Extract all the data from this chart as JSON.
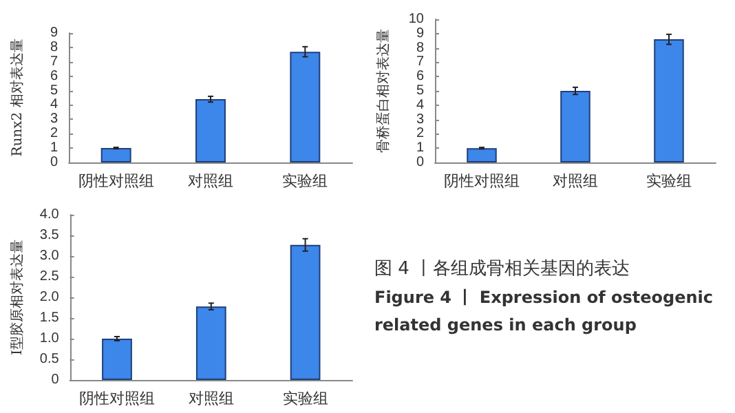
{
  "chart_data": [
    {
      "type": "bar",
      "ylabel": "Runx2 相对表达量",
      "categories": [
        "阴性对照组",
        "对照组",
        "实验组"
      ],
      "values": [
        1.0,
        4.4,
        7.7
      ],
      "errors": [
        0.05,
        0.2,
        0.35
      ],
      "color": "#3d86ea",
      "ylim": [
        0,
        9
      ],
      "yticks": [
        0,
        1,
        2,
        3,
        4,
        5,
        6,
        7,
        8,
        9
      ],
      "grid": false
    },
    {
      "type": "bar",
      "ylabel": "骨桥蛋白相对表达量",
      "categories": [
        "阴性对照组",
        "对照组",
        "实验组"
      ],
      "values": [
        1.0,
        5.0,
        8.6
      ],
      "errors": [
        0.05,
        0.25,
        0.35
      ],
      "color": "#3d86ea",
      "ylim": [
        0,
        10
      ],
      "yticks": [
        0,
        1,
        2,
        3,
        4,
        5,
        6,
        7,
        8,
        9,
        10
      ],
      "grid": false
    },
    {
      "type": "bar",
      "ylabel": "Ⅰ型胶原相对表达量",
      "categories": [
        "阴性对照组",
        "对照组",
        "实验组"
      ],
      "values": [
        1.0,
        1.78,
        3.27
      ],
      "errors": [
        0.05,
        0.08,
        0.15
      ],
      "color": "#3d86ea",
      "ylim": [
        0,
        4
      ],
      "yticks": [
        0,
        0.5,
        {
          "value": 1,
          "label": "1.0"
        },
        1.5,
        {
          "value": 2,
          "label": "2.0"
        },
        2.5,
        {
          "value": 3,
          "label": "3.0"
        },
        3.5,
        {
          "value": 4,
          "label": "4.0"
        }
      ],
      "grid": false,
      "annotations": [
        "图 4 丨各组成骨相关基因的表达",
        "Figure 4 丨 Expression of osteogenic related genes in each group"
      ]
    }
  ]
}
